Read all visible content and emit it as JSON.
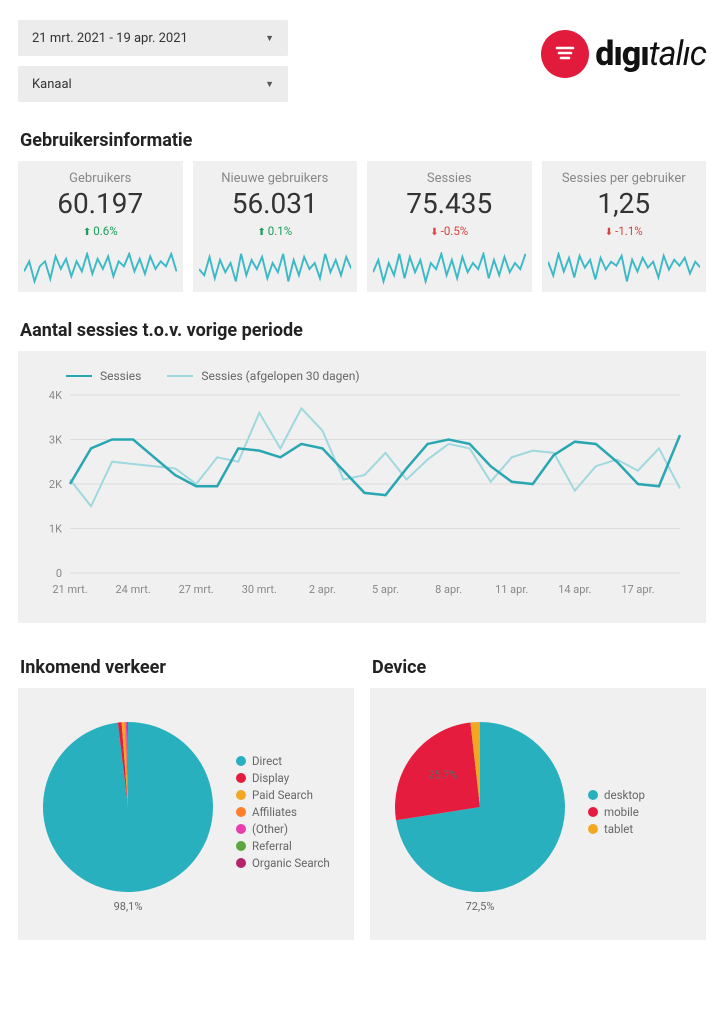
{
  "filters": {
    "date_range": "21 mrt. 2021 - 19 apr. 2021",
    "channel": "Kanaal"
  },
  "logo": {
    "text_bold": "dıgı",
    "text_italic": "talıc"
  },
  "sections": {
    "user_info": "Gebruikersinformatie",
    "sessions_vs": "Aantal sessies t.o.v. vorige periode",
    "incoming": "Inkomend verkeer",
    "device": "Device"
  },
  "kpis": [
    {
      "label": "Gebruikers",
      "value": "60.197",
      "delta": "0.6%",
      "dir": "up",
      "spark": [
        18,
        22,
        14,
        20,
        22,
        15,
        24,
        19,
        23,
        16,
        22,
        18,
        25,
        17,
        23,
        19,
        24,
        16,
        22,
        20,
        25,
        18,
        23,
        17,
        24,
        19,
        22,
        20,
        25,
        18
      ]
    },
    {
      "label": "Nieuwe gebruikers",
      "value": "56.031",
      "delta": "0.1%",
      "dir": "up",
      "spark": [
        20,
        18,
        24,
        17,
        23,
        19,
        22,
        16,
        25,
        18,
        23,
        20,
        24,
        17,
        22,
        19,
        25,
        16,
        23,
        18,
        24,
        20,
        22,
        17,
        25,
        19,
        23,
        18,
        24,
        20
      ]
    },
    {
      "label": "Sessies",
      "value": "75.435",
      "delta": "-0.5%",
      "dir": "down",
      "spark": [
        19,
        23,
        16,
        22,
        18,
        25,
        17,
        24,
        19,
        23,
        16,
        22,
        20,
        25,
        18,
        23,
        17,
        24,
        19,
        22,
        20,
        25,
        17,
        23,
        18,
        24,
        19,
        22,
        20,
        25
      ]
    },
    {
      "label": "Sessies per gebruiker",
      "value": "1,25",
      "delta": "-1.1%",
      "dir": "down",
      "spark": [
        22,
        15,
        26,
        17,
        24,
        14,
        25,
        19,
        23,
        13,
        24,
        18,
        22,
        20,
        25,
        12,
        23,
        17,
        24,
        19,
        22,
        14,
        25,
        18,
        23,
        20,
        24,
        16,
        22,
        19
      ]
    }
  ],
  "spark_color": "#3cb9c6",
  "sessions_chart": {
    "type": "line",
    "colors": {
      "current": "#2aa6b3",
      "previous": "#9fd9de",
      "grid": "#dcdcdc",
      "axis_text": "#888888"
    },
    "legend": {
      "current": "Sessies",
      "previous": "Sessies (afgelopen 30 dagen)"
    },
    "ylim": [
      0,
      4000
    ],
    "ytick_step": 1000,
    "ytick_labels": [
      "0",
      "1K",
      "2K",
      "3K",
      "4K"
    ],
    "x_labels": [
      "21 mrt.",
      "24 mrt.",
      "27 mrt.",
      "30 mrt.",
      "2 apr.",
      "5 apr.",
      "8 apr.",
      "11 apr.",
      "14 apr.",
      "17 apr."
    ],
    "current": [
      2000,
      2800,
      3000,
      3000,
      2600,
      2200,
      1950,
      1950,
      2800,
      2750,
      2600,
      2900,
      2800,
      2300,
      1800,
      1750,
      2350,
      2900,
      3000,
      2900,
      2400,
      2050,
      2000,
      2650,
      2950,
      2900,
      2500,
      2000,
      1950,
      3100
    ],
    "previous": [
      2100,
      1500,
      2500,
      2450,
      2400,
      2350,
      2000,
      2600,
      2500,
      3600,
      2800,
      3700,
      3200,
      2100,
      2200,
      2700,
      2100,
      2550,
      2900,
      2800,
      2050,
      2600,
      2750,
      2700,
      1850,
      2400,
      2550,
      2300,
      2800,
      1900
    ]
  },
  "incoming_pie": {
    "type": "pie",
    "colors": [
      "#29b0bf",
      "#e51c3e",
      "#f3a721",
      "#ff7f2a",
      "#e83ead",
      "#5aa63f",
      "#b5236a"
    ],
    "labels": [
      "Direct",
      "Display",
      "Paid Search",
      "Affiliates",
      "(Other)",
      "Referral",
      "Organic Search"
    ],
    "values": [
      98.1,
      0.7,
      0.5,
      0.3,
      0.2,
      0.1,
      0.1
    ],
    "callout": {
      "label": "98,1%",
      "slice": 0
    }
  },
  "device_pie": {
    "type": "pie",
    "colors": [
      "#29b0bf",
      "#e51c3e",
      "#f3a721"
    ],
    "labels": [
      "desktop",
      "mobile",
      "tablet"
    ],
    "values": [
      72.5,
      25.7,
      1.8
    ],
    "callouts": [
      {
        "label": "72,5%",
        "slice": 0
      },
      {
        "label": "25,7%",
        "slice": 1
      }
    ]
  }
}
